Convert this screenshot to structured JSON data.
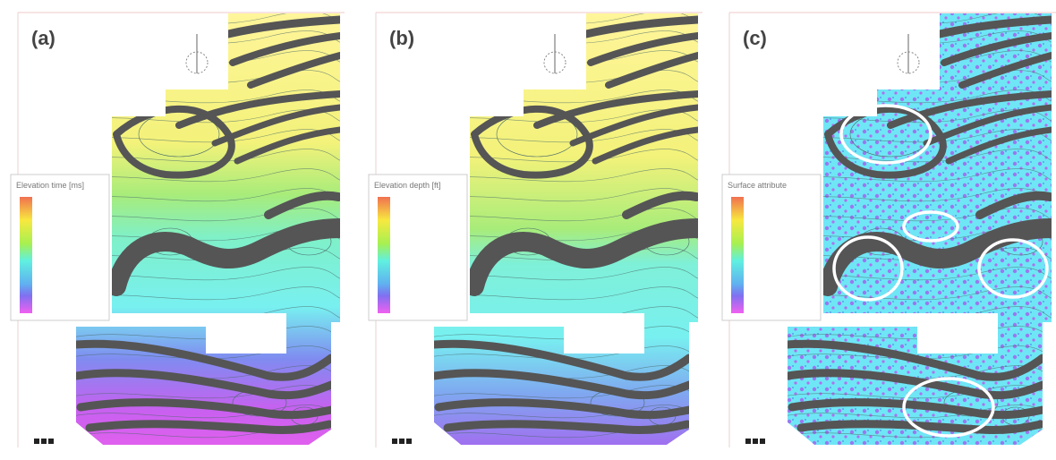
{
  "panels": [
    {
      "label": "(a)",
      "legend_title": "Elevation time [ms]"
    },
    {
      "label": "(b)",
      "legend_title": "Elevation depth [ft]"
    },
    {
      "label": "(c)",
      "legend_title": "Surface attribute"
    }
  ]
}
